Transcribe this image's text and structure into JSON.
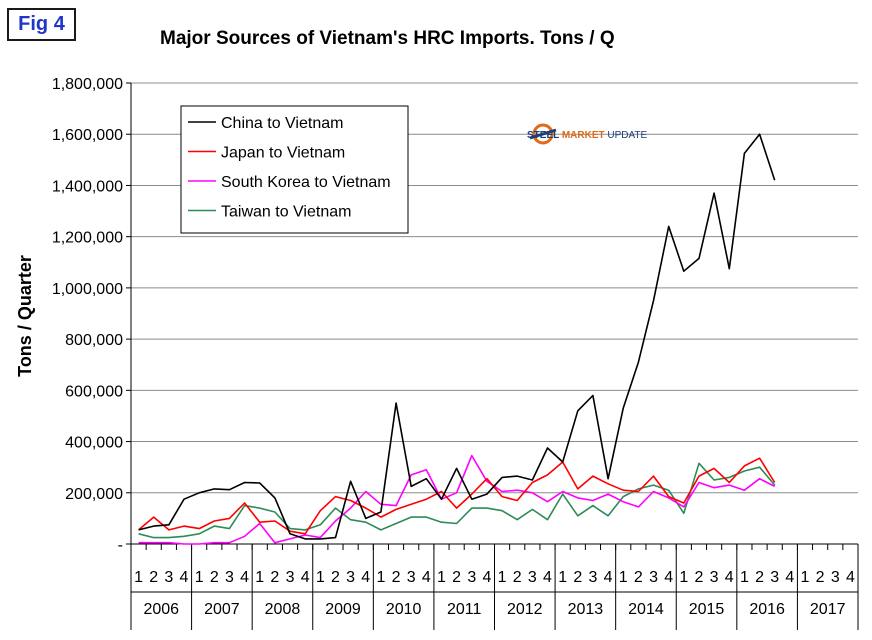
{
  "figure_tag": "Fig 4",
  "watermark": {
    "text_bold": "STEEL",
    "text_mid": "MARKET",
    "text_rest": " UPDATE",
    "brand_color": "#1a3f7a"
  },
  "chart_data": {
    "type": "line",
    "title": "Major Sources of Vietnam's HRC Imports. Tons / Q",
    "ylabel": "Tons / Quarter",
    "xlabel": "",
    "ylim": [
      0,
      1800000
    ],
    "yticks": [
      0,
      200000,
      400000,
      600000,
      800000,
      1000000,
      1200000,
      1400000,
      1600000,
      1800000
    ],
    "ytick_labels": [
      "-",
      "200,000",
      "400,000",
      "600,000",
      "800,000",
      "1,000,000",
      "1,200,000",
      "1,400,000",
      "1,600,000",
      "1,800,000"
    ],
    "years": [
      "2006",
      "2007",
      "2008",
      "2009",
      "2010",
      "2011",
      "2012",
      "2013",
      "2014",
      "2015",
      "2016",
      "2017"
    ],
    "quarters": [
      "1",
      "2",
      "3",
      "4"
    ],
    "grid": true,
    "legend_position": "top-left",
    "series": [
      {
        "name": "China to Vietnam",
        "color": "#000000",
        "values": [
          55000,
          70000,
          75000,
          175000,
          200000,
          215000,
          212000,
          240000,
          238000,
          180000,
          40000,
          20000,
          20000,
          25000,
          245000,
          100000,
          125000,
          550000,
          225000,
          255000,
          175000,
          295000,
          175000,
          195000,
          260000,
          265000,
          250000,
          375000,
          320000,
          520000,
          580000,
          255000,
          530000,
          710000,
          950000,
          1240000,
          1065000,
          1115000,
          1370000,
          1075000,
          1525000,
          1600000,
          1420000
        ]
      },
      {
        "name": "Japan to Vietnam",
        "color": "#ff0000",
        "values": [
          55000,
          105000,
          55000,
          70000,
          60000,
          90000,
          100000,
          160000,
          85000,
          90000,
          50000,
          40000,
          130000,
          185000,
          170000,
          140000,
          105000,
          135000,
          155000,
          175000,
          205000,
          140000,
          195000,
          255000,
          185000,
          170000,
          240000,
          270000,
          320000,
          215000,
          265000,
          235000,
          210000,
          205000,
          265000,
          185000,
          160000,
          265000,
          295000,
          240000,
          305000,
          335000,
          240000
        ]
      },
      {
        "name": "South Korea to Vietnam",
        "color": "#ff00ff",
        "values": [
          5000,
          5000,
          5000,
          0,
          0,
          5000,
          5000,
          30000,
          80000,
          5000,
          20000,
          35000,
          25000,
          90000,
          140000,
          205000,
          155000,
          150000,
          270000,
          290000,
          175000,
          200000,
          345000,
          245000,
          205000,
          210000,
          200000,
          165000,
          205000,
          180000,
          170000,
          195000,
          165000,
          145000,
          205000,
          180000,
          145000,
          240000,
          220000,
          230000,
          210000,
          255000,
          225000
        ]
      },
      {
        "name": "Taiwan to Vietnam",
        "color": "#2e8b57",
        "values": [
          40000,
          25000,
          25000,
          30000,
          40000,
          70000,
          60000,
          150000,
          140000,
          125000,
          60000,
          55000,
          75000,
          140000,
          95000,
          85000,
          55000,
          80000,
          105000,
          105000,
          85000,
          80000,
          140000,
          140000,
          130000,
          95000,
          135000,
          95000,
          195000,
          110000,
          150000,
          110000,
          185000,
          215000,
          230000,
          210000,
          120000,
          315000,
          250000,
          260000,
          285000,
          300000,
          230000
        ]
      }
    ]
  }
}
